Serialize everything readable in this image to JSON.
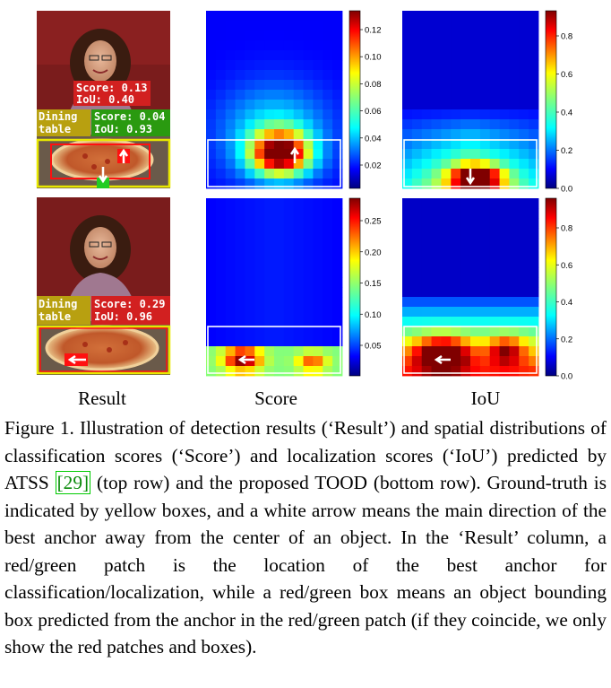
{
  "column_labels": [
    "Result",
    "Score",
    "IoU"
  ],
  "rows": [
    {
      "result": {
        "labels": [
          {
            "kind": "red",
            "lines": [
              "Score: 0.13",
              "IoU: 0.40"
            ]
          },
          {
            "kind": "yellow",
            "lines": [
              "Dining",
              "table"
            ]
          },
          {
            "kind": "green",
            "lines": [
              "Score: 0.04",
              "IoU: 0.93"
            ]
          }
        ]
      },
      "score_colorbar_ticks": [
        "0.12",
        "0.10",
        "0.08",
        "0.06",
        "0.04",
        "0.02"
      ],
      "iou_colorbar_ticks": [
        "0.8",
        "0.6",
        "0.4",
        "0.2",
        "0.0"
      ]
    },
    {
      "result": {
        "labels": [
          {
            "kind": "yellow",
            "lines": [
              "Dining",
              "table"
            ]
          },
          {
            "kind": "red",
            "lines": [
              "Score: 0.29",
              "IoU: 0.96"
            ]
          }
        ]
      },
      "score_colorbar_ticks": [
        "0.25",
        "0.20",
        "0.15",
        "0.10",
        "0.05"
      ],
      "iou_colorbar_ticks": [
        "0.8",
        "0.6",
        "0.4",
        "0.2",
        "0.0"
      ]
    }
  ],
  "caption": {
    "prefix": "Figure 1. Illustration of detection results (‘Result’) and spatial distributions of classification scores (‘Score’) and localization scores (‘IoU’) predicted by ATSS ",
    "cite": "[29]",
    "suffix": " (top row) and the proposed TOOD (bottom row). Ground-truth is indicated by yellow boxes, and a white arrow means the main direction of the best anchor away from the center of an object.  In the ‘Result’ column, a red/green patch is the location of the best anchor for classification/localization, while a red/green box means an object bounding box predicted from the anchor in the red/green patch (if they coincide, we only show the red patches and boxes)."
  }
}
